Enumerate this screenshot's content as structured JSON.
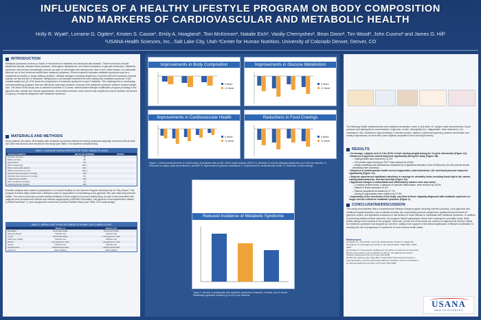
{
  "header": {
    "title_line1": "INFLUENCES OF A HEALTHY LIFESTYLE PROGRAM ON BODY COMPOSITION",
    "title_line2": "AND MARKERS OF CARDIOVASCULAR AND METABOLIC HEALTH",
    "authors": "Holly R. Wyatt¹, Lorraine G. Ogden¹, Kristen S. Cassie¹, Emily A. Hoagland¹, Tom McKinnon², Natalie Eich², Vasiliy Chernyshev², Brian Dixon², Tim Wood², John Cuomo² and James O. Hill¹",
    "affiliations": "¹USANA Health Sciences, Inc., Salt Lake City, Utah     ²Center for Human Nutrition, University of Colorado Denver, Denver, CO"
  },
  "left": {
    "intro_heading": "INTRODUCTION",
    "intro_text": "Metabolic syndrome involves a cluster of risk factors for diabetes and cardiovascular disease. These risk factors include abdominal obesity, elevated blood pressure, atherogenic dyslipidemia, and insulin resistance or glucose intolerance. Metabolic syndrome has become increasingly common as rates of overweight and obesity have risen in the United States. It is estimated that one out of four American adults have metabolic syndrome. Recent research indicates metabolic syndrome may be a completely reversible or longer lasting condition. Lifestyle changes, including weight loss, improved diet and increased physical activity, are the first line of treatment. Weight loss is an indicated treatment for both obesity and metabolic syndrome. Even modest weight loss (5-10%) slows the progression of metabolic syndrome to type 2 diabetes. The challenge lies in developing and implementing programs that can effectively help large numbers of people with metabolic syndrome achieve modest weight loss. The intent of this study was to determine whether a 12-week, internet-based lifestyle modification program providing a low-glycemic diet, vitamin and mineral supplements, and modest exercise could reduce body weight and reduce disease risk factors in a group of subjects diagnosed with metabolic syndrome.",
    "methods_heading": "MATERIALS AND METHODS",
    "methods_text": "Sixty subjects (25 males, 35 females) with metabolic syndrome (defined as having abdominal adiposity combined with at least two other risk factors) were enrolled in this study (see Table 1 for baseline characteristics).",
    "table1_caption": "TABLE 1. BASELINE CHARACTERISTICS OF STUDY SUBJECTS (N=60)",
    "table1_headers": [
      "CHARACTERISTIC",
      "MEAN OR NUMBER",
      "RANGE"
    ],
    "table1_rows": [
      [
        "Female (number)",
        "35",
        ""
      ],
      [
        "Male (number)",
        "25",
        ""
      ],
      [
        "Age (years)",
        "46",
        ""
      ],
      [
        "Body weight (kg)",
        "100.7",
        ""
      ],
      [
        "Body mass index (kg/m²)",
        "33.9",
        ""
      ],
      [
        "Waist circumference (cm)",
        "109.4",
        ""
      ],
      [
        "Systolic blood pressure (mmHg)",
        "129",
        ""
      ],
      [
        "Diastolic blood pressure (mmHg)",
        "84",
        ""
      ],
      [
        "Triglycerides (mg/dL)",
        "196",
        ""
      ],
      [
        "HDL-cholesterol (mg/dL)",
        "43",
        ""
      ],
      [
        "Fasting glucose (mg/dL)",
        "104",
        ""
      ]
    ],
    "methods_text2": "Enrolled subjects were asked to participate in a 12-week Healthy for Life Internet Program developed by Dr. Ray Strand. This program involved daily emails from a lifestyle coach on approaches to maintaining a low-glycemic diet, and improving exercise habits. The coach would also provide weekly feedback on their subject's food and activity diary. As part of the prescribed diet, subjects were provided with vitamin and mineral supplements (USANA® Essentials), low-glycemic meal replacement shakes (USANA Nutrimeal™), and low-glycemic snack bars (USANA Nutrition Bars) (see Table 2 for study design).",
    "table2_caption": "TABLE 2. WEEKLY DIET PLAN FOR SUBJECTS DURING THE 12-WEEK STUDY",
    "table2_headers": [
      "",
      "Weeks 1-4",
      "Weeks 5-12"
    ],
    "table2_rows": [
      [
        "Breakfast",
        "Nutrimeal shake",
        "Nutrimeal shake"
      ],
      [
        "Morning Snack",
        "Nutrition bar",
        "Nutrition bar"
      ],
      [
        "Lunch",
        "Nutrimeal shake",
        "Low-glycemic meal"
      ],
      [
        "Afternoon Snack",
        "Nutrition bar",
        "Nutrition bar"
      ],
      [
        "Dinner",
        "Low-glycemic meal",
        "Low-glycemic meal"
      ],
      [
        "Snack",
        "Nutrition bar",
        "Nutrition bar"
      ],
      [
        "Supplements",
        "USANA Essentials",
        "USANA Essentials"
      ],
      [
        "Exercise",
        "Daily walking",
        "Daily walking"
      ]
    ]
  },
  "middle": {
    "panel1_title": "Improvements in Body Composition",
    "panel2_title": "Improvements in Glucose Metabolism",
    "panel3_title": "Improvements in Cardiovascular Health",
    "panel4_title": "Reductions in Food Cravings",
    "panel5_title": "Reduced Incidence of Metabolic Syndrome",
    "legend_week6": "6 Week",
    "legend_week12": "12 Week",
    "figure1_caption": "Figure 1. Clinical measurements of overall health, all available data (n=60). Mixed model analysis (SAS 9.1). Asterisks (*) denote statistical significance (p<0.05) from baseline. A. Reduction in weight, waist circumference, and BMI. B. Improvement in glucose metabolism. C. Improvement in cardiovascular health. D. Reduction in food cravings.",
    "figure2_caption": "Figure 2. Number of participants with metabolic syndrome at baseline, 6 weeks, and 12 weeks. Statistically significant reduction (p<0.001) from baseline."
  },
  "right": {
    "intro_text": "The following health measurements were obtained at baseline, week 6, and week 12: weight, waist circumference, blood pressure and fasting blood concentrations of glucose, insulin, hemoglobin A1c, triglycerides, total cholesterol, LDL-cholesterol, HDL-cholesterol, high-sensitivity C-reactive protein, vitamin E (alpha and gamma), plasma carotenoids and urinary isoprostanes. At each time point subjects completed a food craving inventory.",
    "results_heading": "RESULTS",
    "results_items": [
      "On average, subjects lost 12.1 lbs (5.6% of their starting weight) during the 12-week intervention (Figure 1A).",
      "Measures of glycemic control improved significantly during the study (Figure 1B):",
      "Fasting insulin was reduced by 22.3%.",
      "120-minute insulin during an OGTT was reduced by 43.6%.",
      "Insulin sensitivity was increased as evidenced by a significant reduction in the HOMA index (31.6%) and the insulin sensitivity index increased.",
      "Measures of cardiovascular health such as triglycerides, total cholesterol, LDL and blood pressure improved significantly (Figure 1C).",
      "Subjects experienced significant reductions in cravings for unhealthy foods including foods high in fat, sweets, carbohydrates/starches, and fast food fats (Figure 1D).",
      "Significant changes in antioxidants and inflammatory markers were also noted:",
      "C-reactive protein levels, a measure of vascular inflammation, were reduced by 26.5%.",
      "Vitamin E levels increased 20.4%.",
      "Plasma tocopherols increased by 17.7%.",
      "Urinary 8-isoprostanes were reduced by 27.9%.",
      "Importantly, at the conclusion of the study, one-third of those originally diagnosed with metabolic syndrome no longer met the criteria for metabolic syndrome (Figure 2)."
    ],
    "conclusions_heading": "CONCLUSIONS/DISCUSSION",
    "conclusions_text": "This study demonstrates that a comprehensive lifestyle change program involving internet coaching, a low-glycemic diet, nutritional supplementation, and moderate exercise can successfully promote weight loss, significant improvements in glycemic control, and significant reductions in risk factors for heart disease in individuals with metabolic syndrome. In addition to promoting healthy clinical outcomes, the program helped participants reduce their cravings for unhealthy foods, likely further aiding in the success of the program. Moreover, by the end of the study, the number of subjects that met the criteria for metabolic syndrome had dropped by one-third, adding more support to the clinical significance of lifestyle modification in reducing the risk of progression of syndrome to more serious health states.",
    "references_heading": "References",
    "references": [
      "[1] Ogden CL, Carroll MD, Curtin LR, McDowell MA, Tabak CJ, Flegal KM. Prevalence of overweight and obesity in the United States, 1999-2004. JAMA 2006.",
      "[2] Orchard TJ, Temprosa M, Goldberg R. The effect of metformin and intensive lifestyle intervention on the metabolic syndrome: the Diabetes Prevention Program randomized trial. Ann Intern Med 2005.",
      "[3] Tate DF, Jackvony EH, Wing RR. A randomized trial comparing human e-mail counseling, computer-automated tailored counseling, and no counseling in an internet weight loss program. Arch Intern Med 2006."
    ],
    "logo_text": "USANA",
    "logo_subtext": "HEALTH SCIENCES"
  },
  "colors": {
    "background": "#1e3e74",
    "panel_title": "#2f68b4",
    "bar_week6": "#2f5fa8",
    "bar_week12": "#f0a33b",
    "logo_red": "#d9252a"
  }
}
